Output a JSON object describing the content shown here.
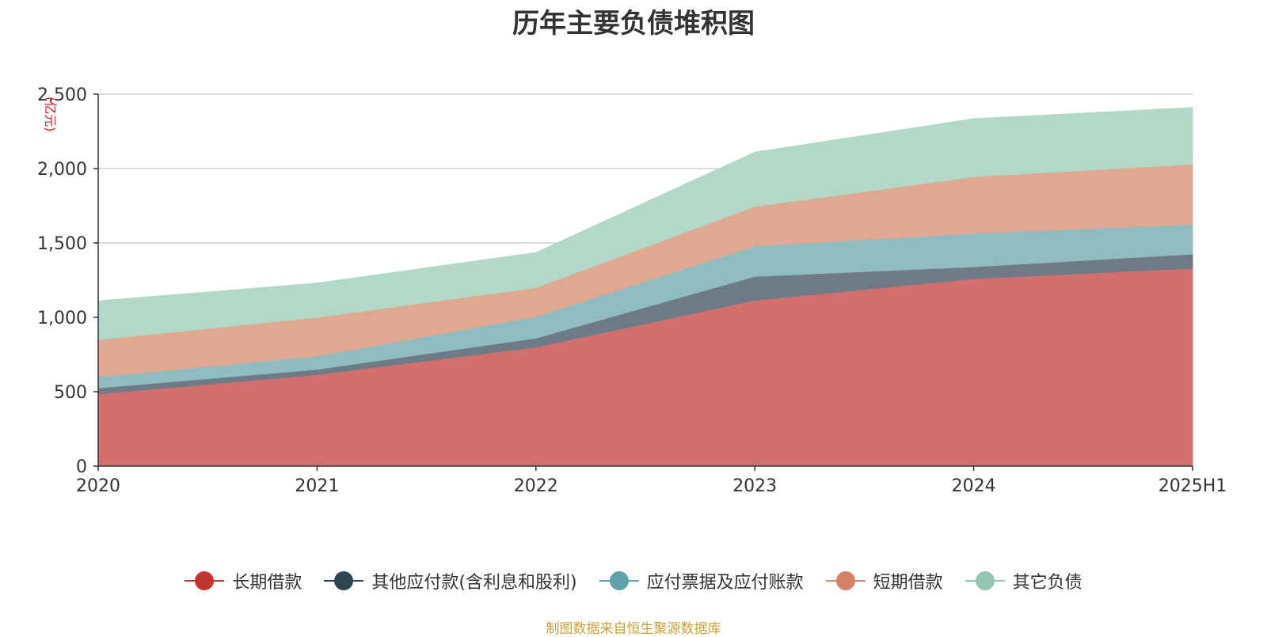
{
  "chart_data": {
    "type": "area",
    "stacked": true,
    "title": "历年主要负债堆积图",
    "unit_label": "(亿元)",
    "categories": [
      "2020",
      "2021",
      "2022",
      "2023",
      "2024",
      "2025H1"
    ],
    "ylim": [
      0,
      2500
    ],
    "yticks": [
      0,
      500,
      1000,
      1500,
      2000,
      2500
    ],
    "ytick_labels": [
      "0",
      "500",
      "1,000",
      "1,500",
      "2,000",
      "2,500"
    ],
    "grid": true,
    "legend_position": "bottom",
    "series": [
      {
        "name": "长期借款",
        "color": "#d2706d",
        "legend_color": "#c23531",
        "values": [
          485,
          615,
          800,
          1115,
          1260,
          1330
        ]
      },
      {
        "name": "其他应付款(含利息和股利)",
        "color": "#6e7a86",
        "legend_color": "#2f4554",
        "values": [
          40,
          35,
          60,
          160,
          80,
          95
        ]
      },
      {
        "name": "应付票据及应付账款",
        "color": "#8fbcc1",
        "legend_color": "#61a0a8",
        "values": [
          75,
          90,
          145,
          205,
          225,
          200
        ]
      },
      {
        "name": "短期借款",
        "color": "#e0a890",
        "legend_color": "#d48265",
        "values": [
          250,
          260,
          195,
          265,
          380,
          405
        ]
      },
      {
        "name": "其它负债",
        "color": "#b2d8c7",
        "legend_color": "#91c7ae",
        "values": [
          260,
          230,
          235,
          365,
          390,
          380
        ]
      }
    ]
  },
  "source_note": "制图数据来自恒生聚源数据库"
}
